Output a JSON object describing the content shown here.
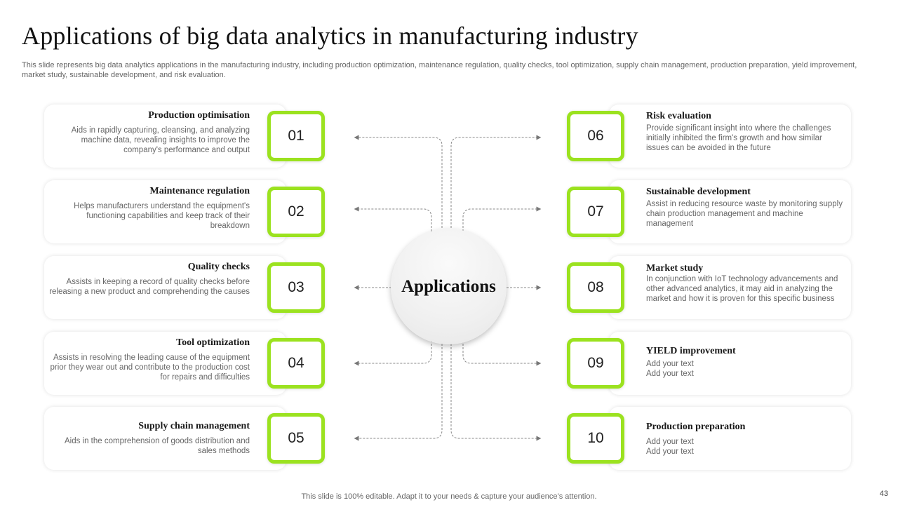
{
  "slide": {
    "title": "Applications of big data analytics in manufacturing industry",
    "subtitle": "This slide represents big data analytics applications in the manufacturing industry, including production optimization, maintenance regulation, quality checks, tool optimization, supply chain management, production preparation, yield improvement, market study, sustainable development, and risk evaluation.",
    "center_label": "Applications",
    "footer": "This slide is 100% editable. Adapt it to your needs & capture your audience’s attention.",
    "page_number": "43",
    "accent_color": "#9be21f"
  },
  "items": [
    {
      "number": "01",
      "heading": "Production optimisation",
      "description": "Aids in rapidly capturing, cleansing, and analyzing machine data, revealing insights to improve the company's performance and output"
    },
    {
      "number": "02",
      "heading": "Maintenance regulation",
      "description": "Helps manufacturers understand the equipment's functioning capabilities and keep track of their breakdown"
    },
    {
      "number": "03",
      "heading": "Quality checks",
      "description": "Assists in keeping a record of quality checks before releasing a new product and comprehending the causes"
    },
    {
      "number": "04",
      "heading": "Tool optimization",
      "description": "Assists in resolving the leading cause of the equipment prior they wear out and contribute to the production cost for repairs and difficulties"
    },
    {
      "number": "05",
      "heading": "Supply chain management",
      "description": "Aids in the comprehension of goods distribution and sales methods"
    },
    {
      "number": "06",
      "heading": "Risk evaluation",
      "description": "Provide significant insight into where the challenges initially inhibited the firm's growth and how similar issues can be avoided in the future"
    },
    {
      "number": "07",
      "heading": "Sustainable development",
      "description": "Assist in reducing resource waste by monitoring supply chain production management and machine management"
    },
    {
      "number": "08",
      "heading": "Market study",
      "description": "In conjunction with IoT technology advancements and other advanced analytics, it may aid in analyzing the market and how it is proven for this specific business"
    },
    {
      "number": "09",
      "heading": "YIELD improvement",
      "description": "Add your text\nAdd your text"
    },
    {
      "number": "10",
      "heading": "Production preparation",
      "description": "Add your text\nAdd your text"
    }
  ]
}
